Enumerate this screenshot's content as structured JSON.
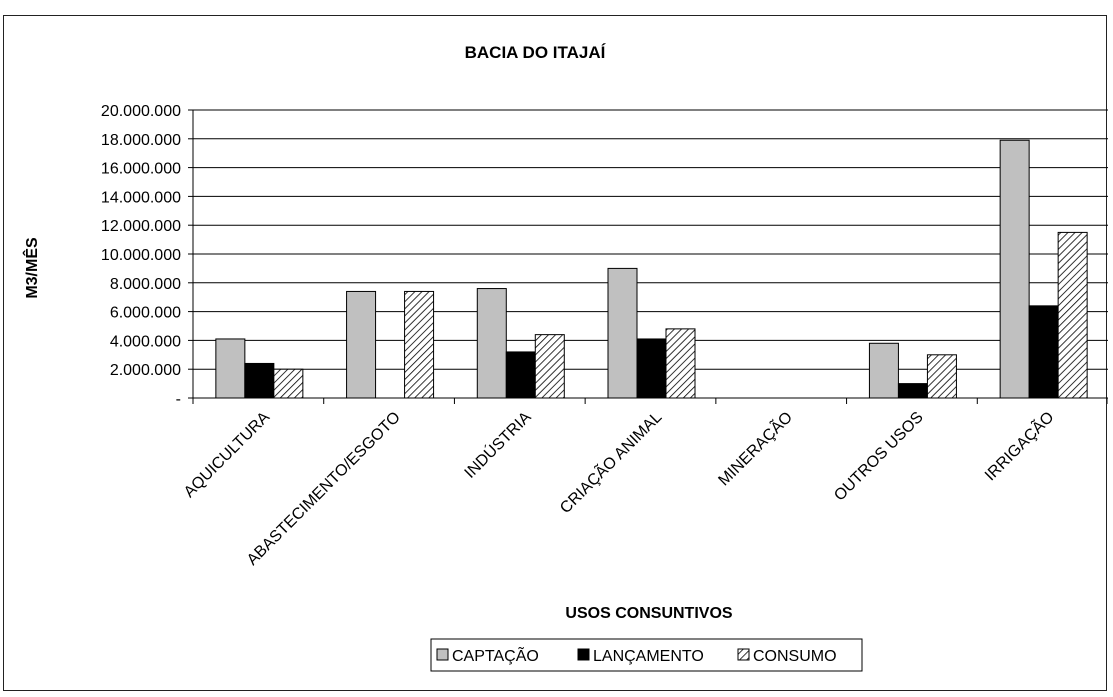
{
  "chart_data": {
    "type": "bar",
    "title": "BACIA DO ITAJAÍ",
    "xlabel": "USOS CONSUNTIVOS",
    "ylabel": "M3/MÊS",
    "ylim": [
      0,
      20000000
    ],
    "y_ticks": [
      "-",
      "2.000.000",
      "4.000.000",
      "6.000.000",
      "8.000.000",
      "10.000.000",
      "12.000.000",
      "14.000.000",
      "16.000.000",
      "18.000.000",
      "20.000.000"
    ],
    "grid": true,
    "legend_position": "bottom",
    "categories": [
      "AQUICULTURA",
      "ABASTECIMENTO/ESGOTO",
      "INDÚSTRIA",
      "CRIAÇÃO ANIMAL",
      "MINERAÇÃO",
      "OUTROS USOS",
      "IRRIGAÇÃO"
    ],
    "series": [
      {
        "name": "CAPTAÇÃO",
        "color": "#c0c0c0",
        "pattern": "solid",
        "values": [
          4100000,
          7400000,
          7600000,
          9000000,
          0,
          3800000,
          17900000
        ]
      },
      {
        "name": "LANÇAMENTO",
        "color": "#000000",
        "pattern": "solid",
        "values": [
          2400000,
          0,
          3200000,
          4100000,
          0,
          1000000,
          6400000
        ]
      },
      {
        "name": "CONSUMO",
        "color": "#ffffff",
        "pattern": "hatch",
        "values": [
          2000000,
          7400000,
          4400000,
          4800000,
          0,
          3000000,
          11500000
        ]
      }
    ]
  }
}
